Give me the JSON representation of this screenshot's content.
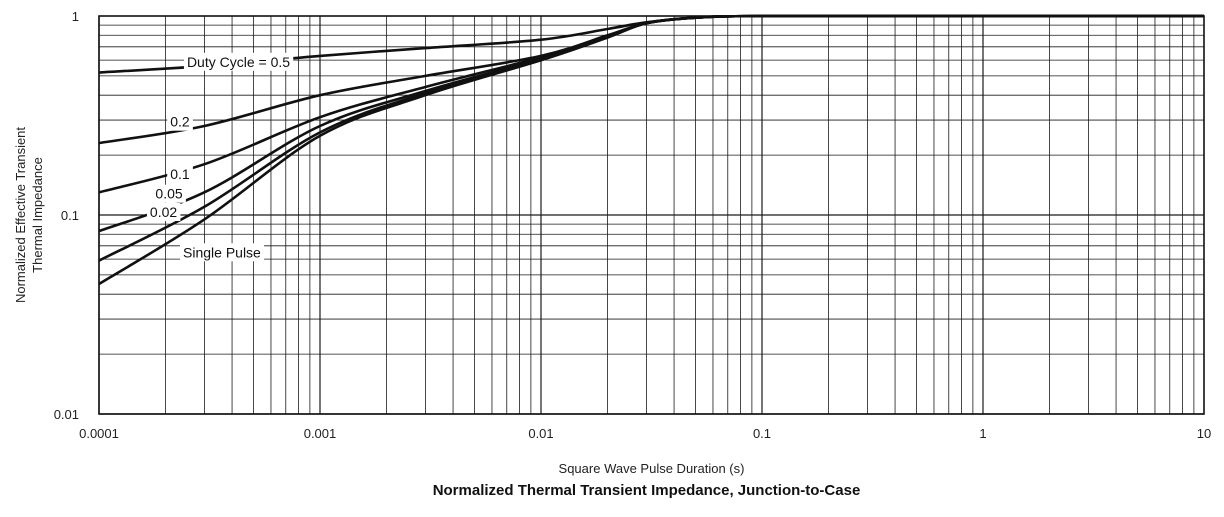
{
  "chart_data": {
    "type": "line",
    "title": "Normalized Thermal Transient Impedance, Junction-to-Case",
    "xlabel": "Square Wave Pulse Duration (s)",
    "ylabel": [
      "Normalized Effective Transient",
      "Thermal Impedance"
    ],
    "x_scale": "log",
    "y_scale": "log",
    "xlim": [
      0.0001,
      10
    ],
    "ylim": [
      0.01,
      1
    ],
    "grid": true,
    "x_ticks": [
      "0.0001",
      "0.001",
      "0.01",
      "0.1",
      "1",
      "10"
    ],
    "y_ticks": [
      "0.01",
      "0.1",
      "1"
    ],
    "series": [
      {
        "name": "Duty Cycle = 0.5",
        "x": [
          0.0001,
          0.0003,
          0.001,
          0.003,
          0.01,
          0.02,
          0.03,
          0.05,
          0.1,
          1,
          10
        ],
        "y": [
          0.52,
          0.56,
          0.63,
          0.69,
          0.76,
          0.86,
          0.93,
          0.98,
          1.0,
          1.0,
          1.0
        ]
      },
      {
        "name": "0.2",
        "x": [
          0.0001,
          0.0003,
          0.001,
          0.003,
          0.01,
          0.02,
          0.03,
          0.05,
          0.1,
          1,
          10
        ],
        "y": [
          0.23,
          0.28,
          0.4,
          0.5,
          0.63,
          0.8,
          0.92,
          0.98,
          1.0,
          1.0,
          1.0
        ]
      },
      {
        "name": "0.1",
        "x": [
          0.0001,
          0.0003,
          0.001,
          0.003,
          0.01,
          0.02,
          0.03,
          0.05,
          0.1,
          1,
          10
        ],
        "y": [
          0.13,
          0.18,
          0.31,
          0.44,
          0.62,
          0.79,
          0.92,
          0.98,
          1.0,
          1.0,
          1.0
        ]
      },
      {
        "name": "0.05",
        "x": [
          0.0001,
          0.0003,
          0.001,
          0.003,
          0.01,
          0.02,
          0.03,
          0.05,
          0.1,
          1,
          10
        ],
        "y": [
          0.083,
          0.13,
          0.28,
          0.42,
          0.61,
          0.79,
          0.92,
          0.98,
          1.0,
          1.0,
          1.0
        ]
      },
      {
        "name": "0.02",
        "x": [
          0.0001,
          0.0003,
          0.001,
          0.003,
          0.01,
          0.02,
          0.03,
          0.05,
          0.1,
          1,
          10
        ],
        "y": [
          0.059,
          0.11,
          0.26,
          0.41,
          0.6,
          0.78,
          0.92,
          0.98,
          1.0,
          1.0,
          1.0
        ]
      },
      {
        "name": "Single Pulse",
        "x": [
          0.0001,
          0.0003,
          0.001,
          0.003,
          0.01,
          0.02,
          0.03,
          0.05,
          0.1,
          1,
          10
        ],
        "y": [
          0.045,
          0.095,
          0.25,
          0.4,
          0.6,
          0.78,
          0.92,
          0.98,
          1.0,
          1.0,
          1.0
        ]
      }
    ],
    "curve_labels": [
      {
        "text": "Duty Cycle = 0.5",
        "x": 0.00025,
        "y": 0.58
      },
      {
        "text": "0.2",
        "x": 0.00021,
        "y": 0.29
      },
      {
        "text": "0.1",
        "x": 0.00021,
        "y": 0.158
      },
      {
        "text": "0.05",
        "x": 0.00018,
        "y": 0.126
      },
      {
        "text": "0.02",
        "x": 0.00017,
        "y": 0.102
      },
      {
        "text": "Single Pulse",
        "x": 0.00024,
        "y": 0.064
      }
    ]
  }
}
